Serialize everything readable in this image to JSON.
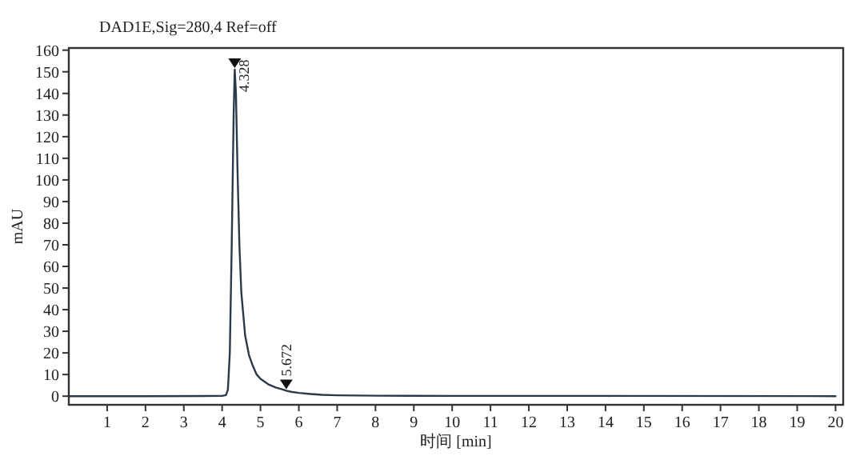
{
  "chart_data": {
    "type": "line",
    "title": "DAD1E,Sig=280,4 Ref=off",
    "xlabel": "时间 [min]",
    "ylabel": "mAU",
    "x": [
      0,
      2,
      4.0,
      4.1,
      4.15,
      4.2,
      4.25,
      4.3,
      4.328,
      4.36,
      4.4,
      4.45,
      4.5,
      4.6,
      4.7,
      4.8,
      4.9,
      5.0,
      5.2,
      5.4,
      5.6,
      5.672,
      5.8,
      6.0,
      6.3,
      6.6,
      7,
      8,
      10,
      14,
      20
    ],
    "values": [
      0,
      0,
      0.1,
      0.5,
      3,
      20,
      70,
      130,
      151,
      140,
      105,
      70,
      48,
      28,
      19,
      14,
      10,
      8,
      5.5,
      4,
      3,
      2.5,
      2,
      1.5,
      1,
      0.6,
      0.4,
      0.2,
      0.1,
      0.1,
      0
    ],
    "color": "#2b3a4a",
    "xlim": [
      0,
      20.2
    ],
    "ylim": [
      -4,
      161
    ],
    "xticks": [
      1,
      2,
      3,
      4,
      5,
      6,
      7,
      8,
      9,
      10,
      11,
      12,
      13,
      14,
      15,
      16,
      17,
      18,
      19,
      20
    ],
    "yticks": [
      0,
      10,
      20,
      30,
      40,
      50,
      60,
      70,
      80,
      90,
      100,
      110,
      120,
      130,
      140,
      150,
      160
    ],
    "annotations": [
      {
        "text": "4.328",
        "x": 4.328,
        "y": 151
      },
      {
        "text": "5.672",
        "x": 5.672,
        "y": 2.5
      }
    ]
  }
}
